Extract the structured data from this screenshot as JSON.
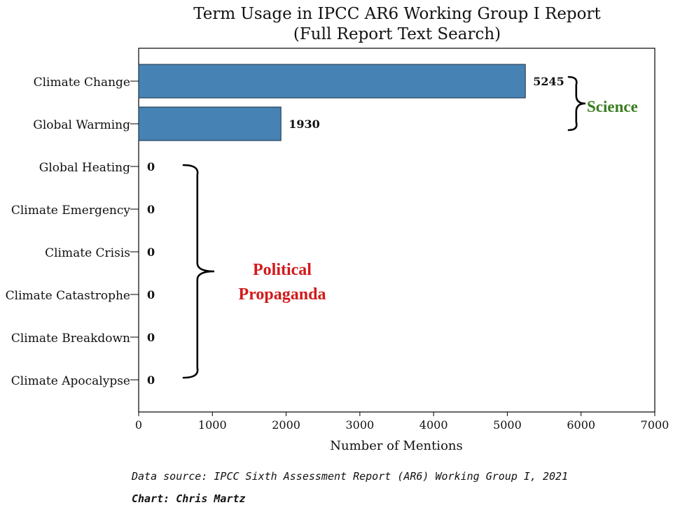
{
  "chart_data": {
    "type": "bar",
    "orientation": "horizontal",
    "title": "Term Usage in IPCC AR6 Working Group I Report",
    "subtitle": "(Full Report Text Search)",
    "xlabel": "Number of Mentions",
    "ylabel": "",
    "xlim": [
      0,
      7000
    ],
    "xticks": [
      "0",
      "1000",
      "2000",
      "3000",
      "4000",
      "5000",
      "6000",
      "7000"
    ],
    "categories": [
      "Climate Change",
      "Global Warming",
      "Global Heating",
      "Climate Emergency",
      "Climate Crisis",
      "Climate Catastrophe",
      "Climate Breakdown",
      "Climate Apocalypse"
    ],
    "values": [
      5245,
      1930,
      0,
      0,
      0,
      0,
      0,
      0
    ],
    "data_labels": [
      "5245",
      "1930",
      "0",
      "0",
      "0",
      "0",
      "0",
      "0"
    ],
    "bar_color": "#4682b4",
    "grid": false,
    "annotations": [
      {
        "text": "Science",
        "color": "#3a7d1e",
        "categories": [
          "Climate Change",
          "Global Warming"
        ]
      },
      {
        "text": "Political Propaganda",
        "lines": [
          "Political",
          "Propaganda"
        ],
        "color": "#d11a1a",
        "categories": [
          "Global Heating",
          "Climate Emergency",
          "Climate Crisis",
          "Climate Catastrophe",
          "Climate Breakdown",
          "Climate Apocalypse"
        ]
      }
    ]
  },
  "footer": {
    "source": "Data source: IPCC Sixth Assessment Report (AR6) Working Group I, 2021",
    "author": "Chart: Chris Martz"
  }
}
